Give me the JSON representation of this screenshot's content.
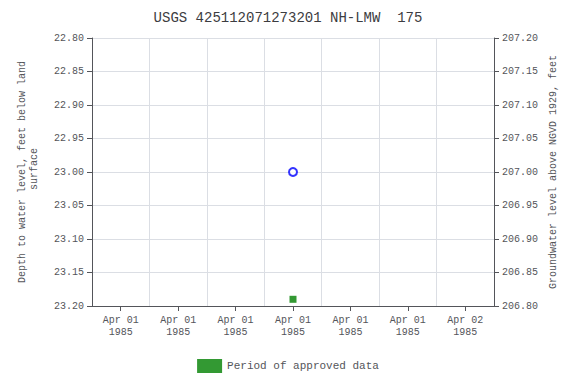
{
  "chart_data": {
    "type": "scatter",
    "title": "USGS 425112071273201 NH-LMW  175",
    "ylabel": "Depth to water level, feet below land\n surface",
    "y2label": "Groundwater level above NGVD 1929, feet",
    "categories": [
      "Apr 01\n1985",
      "Apr 01\n1985",
      "Apr 01\n1985",
      "Apr 01\n1985",
      "Apr 01\n1985",
      "Apr 01\n1985",
      "Apr 02\n1985"
    ],
    "series": [
      {
        "color": "blue",
        "marker": "open_circle",
        "values": [
          null,
          null,
          null,
          23.0,
          null,
          null,
          null
        ]
      },
      {
        "name": "Period of approved data",
        "color": "#008000",
        "marker": "square",
        "values": [
          null,
          null,
          null,
          23.19,
          null,
          null,
          null
        ]
      }
    ],
    "ylim": [
      23.2,
      22.8
    ],
    "yticks": [
      {
        "value": 22.8,
        "label": "22.80"
      },
      22.85,
      {
        "value": 22.9,
        "label": "22.90"
      },
      22.95,
      {
        "value": 23.0,
        "label": "23.00"
      },
      23.05,
      {
        "value": 23.1,
        "label": "23.10"
      },
      23.15,
      {
        "value": 23.2,
        "label": "23.20"
      }
    ],
    "y2lim": [
      206.8,
      207.2
    ],
    "y2ticks": [
      {
        "value": 207.2,
        "label": "207.20"
      },
      207.15,
      {
        "value": 207.1,
        "label": "207.10"
      },
      207.05,
      {
        "value": 207.0,
        "label": "207.00"
      },
      206.95,
      {
        "value": 206.9,
        "label": "206.90"
      },
      206.85,
      {
        "value": 206.8,
        "label": "206.80"
      }
    ],
    "grid": true,
    "legend": "bottom"
  }
}
